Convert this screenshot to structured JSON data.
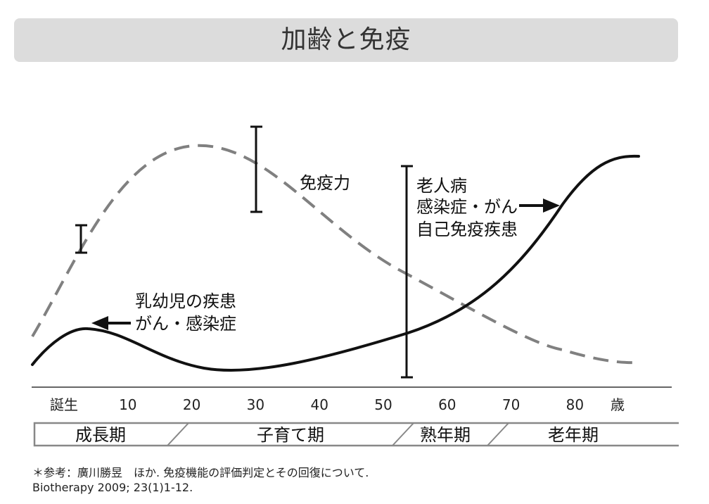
{
  "title": "加齢と免疫",
  "axis": {
    "ticks": [
      {
        "label": "誕生",
        "age": 0
      },
      {
        "label": "10",
        "age": 10
      },
      {
        "label": "20",
        "age": 20
      },
      {
        "label": "30",
        "age": 30
      },
      {
        "label": "40",
        "age": 40
      },
      {
        "label": "50",
        "age": 50
      },
      {
        "label": "60",
        "age": 60
      },
      {
        "label": "70",
        "age": 70
      },
      {
        "label": "80",
        "age": 80
      }
    ],
    "unit": "歳"
  },
  "stages": [
    "成長期",
    "子育て期",
    "熟年期",
    "老年期"
  ],
  "curves": {
    "immunity_label": "免疫力",
    "immunity_color": "#808080",
    "disease_color": "#111111"
  },
  "annotations": {
    "infant": [
      "乳幼児の疾患",
      "がん・感染症"
    ],
    "elderly": [
      "老人病",
      "感染症・がん",
      "自己免疫疾患"
    ]
  },
  "reference": {
    "line1": "＊参考：廣川勝昱　ほか. 免疫機能の評価判定とその回復について.",
    "line2": "Biotherapy 2009; 23(1)1-12."
  }
}
